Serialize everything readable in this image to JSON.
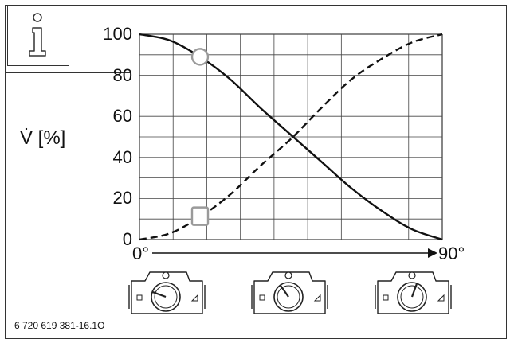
{
  "chart_data": {
    "type": "line",
    "title": "",
    "ylabel": "V̇ [%]",
    "xlabel": "",
    "x_start_label": "0°",
    "x_end_label": "90°",
    "xlim": [
      0,
      90
    ],
    "ylim": [
      0,
      100
    ],
    "yticks": [
      0,
      20,
      40,
      60,
      80,
      100
    ],
    "grid": true,
    "x": [
      0,
      9,
      18,
      27,
      36,
      45,
      54,
      63,
      72,
      81,
      90
    ],
    "series": [
      {
        "style": "solid",
        "values": [
          100,
          97,
          89,
          78,
          64,
          51,
          38,
          25,
          14,
          5,
          0
        ]
      },
      {
        "style": "dashed",
        "values": [
          0,
          3,
          11,
          22,
          36,
          49,
          64,
          78,
          88,
          96,
          100
        ]
      }
    ],
    "markers": [
      {
        "shape": "circle",
        "x": 18,
        "y": 89
      },
      {
        "shape": "square",
        "x": 18,
        "y": 11
      }
    ]
  },
  "footer": {
    "code": "6 720 619 381-16.1O"
  },
  "icons": {
    "info": "info-icon",
    "valves": [
      "valve-icon-0",
      "valve-icon-45",
      "valve-icon-90"
    ]
  }
}
